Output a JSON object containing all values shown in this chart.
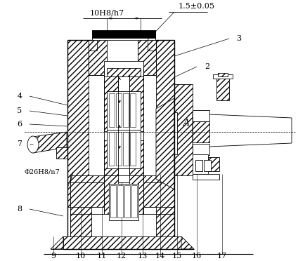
{
  "bg_color": "#ffffff",
  "dim1": "10H8/h7",
  "dim2": "1.5±0.05",
  "dim3": "Φ26H8/n7",
  "label_A": "A",
  "figsize": [
    4.24,
    3.72
  ],
  "dpi": 100
}
